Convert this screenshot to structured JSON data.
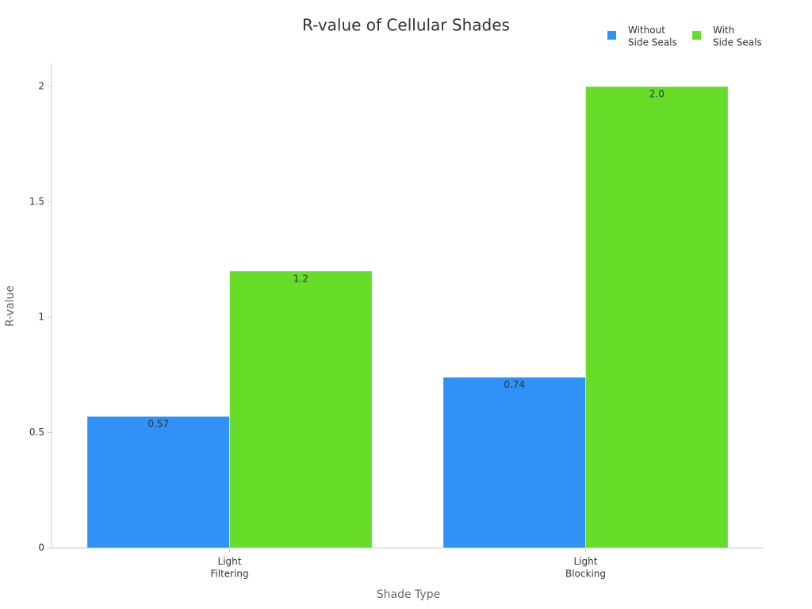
{
  "chart_data": {
    "type": "bar",
    "title": "R-value of Cellular Shades",
    "x_label": "Shade Type",
    "y_label": "R-value",
    "categories": [
      "Light\nFiltering",
      "Light\nBlocking"
    ],
    "series": [
      {
        "name": "Without\nSide Seals",
        "color": "#3091f6",
        "values": [
          0.57,
          0.74
        ]
      },
      {
        "name": "With\nSide Seals",
        "color": "#67dc29",
        "values": [
          1.2,
          2.0
        ],
        "value_labels": [
          "1.2",
          "2.0"
        ]
      }
    ],
    "ylim": [
      0,
      2.1
    ],
    "yticks": [
      0,
      0.5,
      1,
      1.5,
      2
    ],
    "grid": false,
    "legend": "top-right"
  }
}
